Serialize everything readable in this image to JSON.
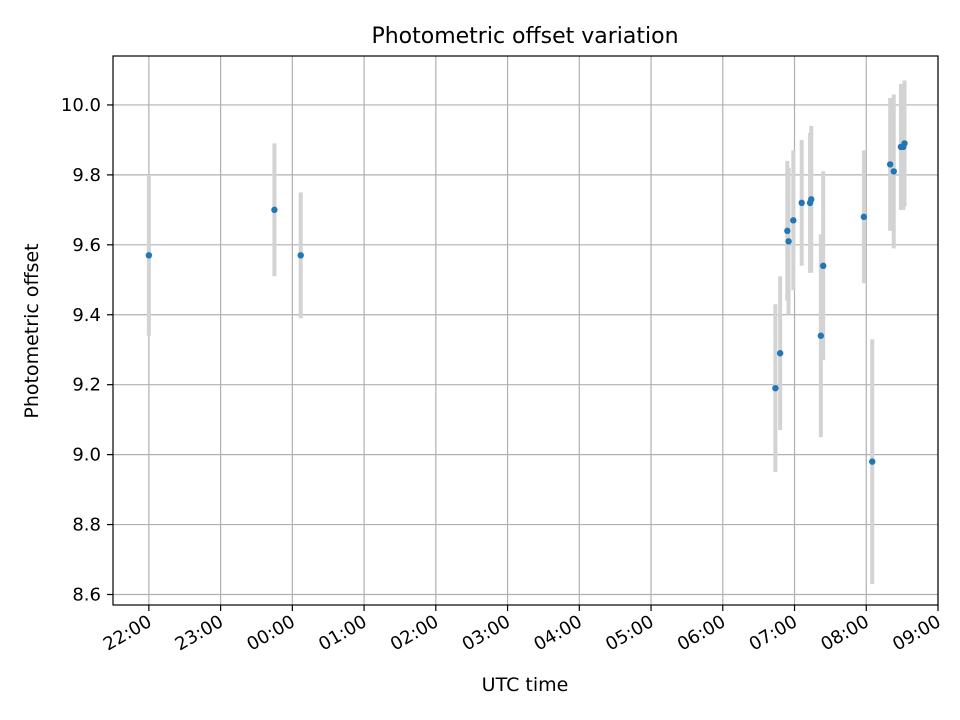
{
  "chart_data": {
    "type": "scatter",
    "title": "Photometric offset variation",
    "xlabel": "UTC time",
    "ylabel": "Photometric offset",
    "x_axis": {
      "kind": "time",
      "start": "21:30",
      "end": "09:00",
      "ticks": [
        "22:00",
        "23:00",
        "00:00",
        "01:00",
        "02:00",
        "03:00",
        "04:00",
        "05:00",
        "06:00",
        "07:00",
        "08:00",
        "09:00"
      ]
    },
    "ylim": [
      8.57,
      10.14
    ],
    "y_ticks": [
      "8.6",
      "8.8",
      "9.0",
      "9.2",
      "9.4",
      "9.6",
      "9.8",
      "10.0"
    ],
    "grid": true,
    "marker_color": "#1f77b4",
    "errorbar_color": "#d3d3d3",
    "series": [
      {
        "points": [
          {
            "x": "22:00",
            "y": 9.57,
            "err": 0.23
          },
          {
            "x": "23:45",
            "y": 9.7,
            "err": 0.19
          },
          {
            "x": "00:07",
            "y": 9.57,
            "err": 0.18
          },
          {
            "x": "06:44",
            "y": 9.19,
            "err": 0.24
          },
          {
            "x": "06:48",
            "y": 9.29,
            "err": 0.22
          },
          {
            "x": "06:54",
            "y": 9.64,
            "err": 0.2
          },
          {
            "x": "06:55",
            "y": 9.61,
            "err": 0.21
          },
          {
            "x": "06:59",
            "y": 9.67,
            "err": 0.2
          },
          {
            "x": "07:06",
            "y": 9.72,
            "err": 0.18
          },
          {
            "x": "07:13",
            "y": 9.72,
            "err": 0.2
          },
          {
            "x": "07:14",
            "y": 9.73,
            "err": 0.21
          },
          {
            "x": "07:22",
            "y": 9.34,
            "err": 0.29
          },
          {
            "x": "07:24",
            "y": 9.54,
            "err": 0.27
          },
          {
            "x": "07:58",
            "y": 9.68,
            "err": 0.19
          },
          {
            "x": "08:05",
            "y": 8.98,
            "err": 0.35
          },
          {
            "x": "08:20",
            "y": 9.83,
            "err": 0.19
          },
          {
            "x": "08:23",
            "y": 9.81,
            "err": 0.22
          },
          {
            "x": "08:29",
            "y": 9.88,
            "err": 0.18
          },
          {
            "x": "08:31",
            "y": 9.88,
            "err": 0.18
          },
          {
            "x": "08:32",
            "y": 9.89,
            "err": 0.18
          }
        ]
      }
    ]
  }
}
